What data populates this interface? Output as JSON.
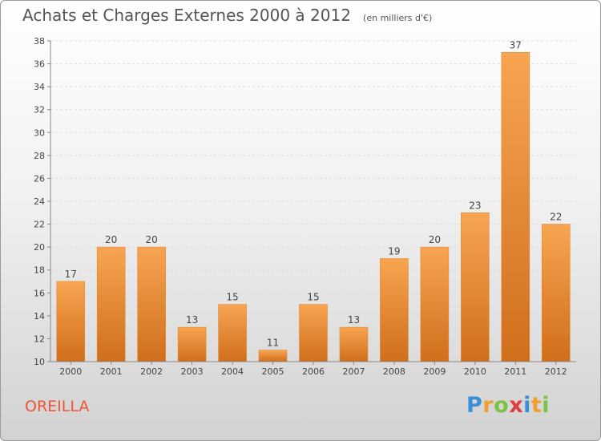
{
  "colors": {
    "bar_light": "#f7a552",
    "bar_dark": "#d06e1b",
    "title": "#555555",
    "commune": "#ee5533"
  },
  "header": {
    "title": "Achats et Charges Externes 2000 à 2012",
    "unit": "(en milliers d'€)"
  },
  "footer": {
    "commune": "OREILLA",
    "brand_letters": [
      {
        "ch": "P",
        "color": "#3b8fd6"
      },
      {
        "ch": "r",
        "color": "#f0a030"
      },
      {
        "ch": "o",
        "color": "#7cc243"
      },
      {
        "ch": "x",
        "color": "#e23d3d"
      },
      {
        "ch": "i",
        "color": "#3b8fd6"
      },
      {
        "ch": "t",
        "color": "#f0a030"
      },
      {
        "ch": "i",
        "color": "#7cc243"
      }
    ]
  },
  "chart_data": {
    "type": "bar",
    "title": "Achats et Charges Externes 2000 à 2012",
    "subtitle": "(en milliers d'€)",
    "categories": [
      "2000",
      "2001",
      "2002",
      "2003",
      "2004",
      "2005",
      "2006",
      "2007",
      "2008",
      "2009",
      "2010",
      "2011",
      "2012"
    ],
    "values": [
      17,
      20,
      20,
      13,
      15,
      11,
      15,
      13,
      19,
      20,
      23,
      37,
      22
    ],
    "ylim": [
      10,
      38
    ],
    "yticks": [
      10,
      12,
      14,
      16,
      18,
      20,
      22,
      24,
      26,
      28,
      30,
      32,
      34,
      36,
      38
    ],
    "grid": true
  }
}
